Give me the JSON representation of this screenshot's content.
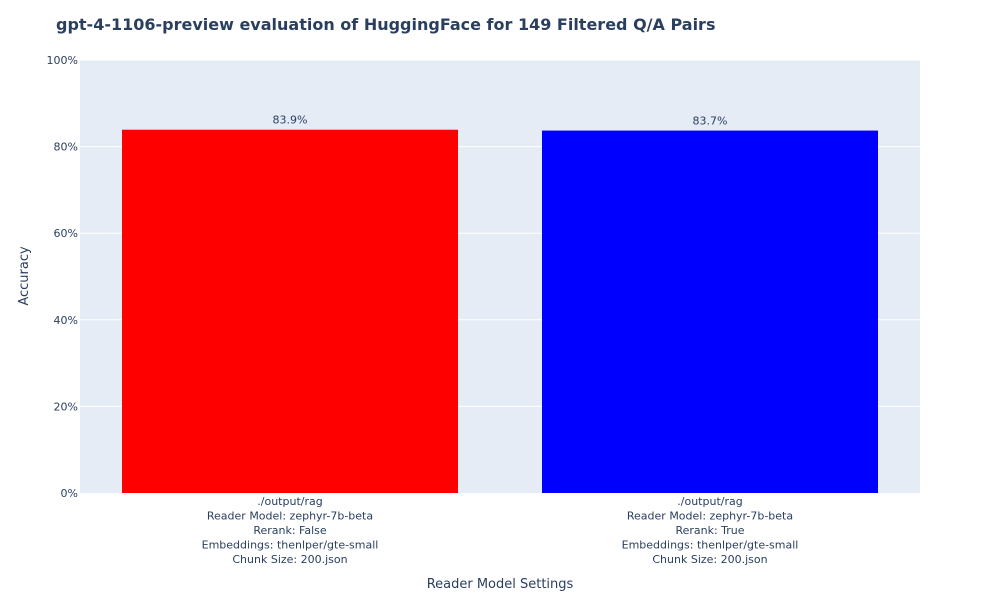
{
  "chart_data": {
    "type": "bar",
    "title": "gpt-4-1106-preview evaluation of HuggingFace for 149 Filtered Q/A Pairs",
    "xlabel": "Reader Model Settings",
    "ylabel": "Accuracy",
    "ylim": [
      0,
      100
    ],
    "y_ticks": [
      "0%",
      "20%",
      "40%",
      "60%",
      "80%",
      "100%"
    ],
    "y_tick_values": [
      0,
      20,
      40,
      60,
      80,
      100
    ],
    "grid": true,
    "plot_background": "#e5ecf6",
    "categories": [
      [
        "./output/rag",
        "Reader Model: zephyr-7b-beta",
        "Rerank: False",
        "Embeddings: thenlper/gte-small",
        "Chunk Size: 200.json"
      ],
      [
        "./output/rag",
        "Reader Model: zephyr-7b-beta",
        "Rerank: True",
        "Embeddings: thenlper/gte-small",
        "Chunk Size: 200.json"
      ]
    ],
    "values": [
      83.9,
      83.7
    ],
    "data_labels": [
      "83.9%",
      "83.7%"
    ],
    "colors": [
      "#ff0000",
      "#0000ff"
    ]
  }
}
